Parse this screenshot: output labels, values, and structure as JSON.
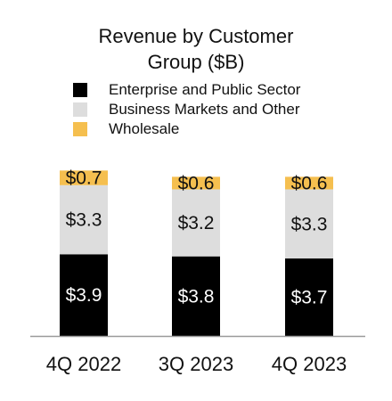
{
  "chart_data": {
    "type": "bar",
    "stacked": true,
    "title": "Revenue by Customer Group ($B)",
    "title_lines": [
      "Revenue by Customer",
      "Group ($B)"
    ],
    "categories": [
      "4Q 2022",
      "3Q 2023",
      "4Q 2023"
    ],
    "series": [
      {
        "name": "Enterprise and Public Sector",
        "color": "#000000",
        "label_color": "#ffffff",
        "values": [
          3.9,
          3.8,
          3.7
        ],
        "labels": [
          "$3.9",
          "$3.8",
          "$3.7"
        ]
      },
      {
        "name": "Business Markets and Other",
        "color": "#dddddd",
        "label_color": "#111111",
        "values": [
          3.3,
          3.2,
          3.3
        ],
        "labels": [
          "$3.3",
          "$3.2",
          "$3.3"
        ]
      },
      {
        "name": "Wholesale",
        "color": "#f5bf4f",
        "label_color": "#111111",
        "values": [
          0.7,
          0.6,
          0.6
        ],
        "labels": [
          "$0.7",
          "$0.6",
          "$0.6"
        ]
      }
    ],
    "legend_position": "top",
    "grid": false,
    "ylim": [
      0,
      8.0
    ]
  }
}
